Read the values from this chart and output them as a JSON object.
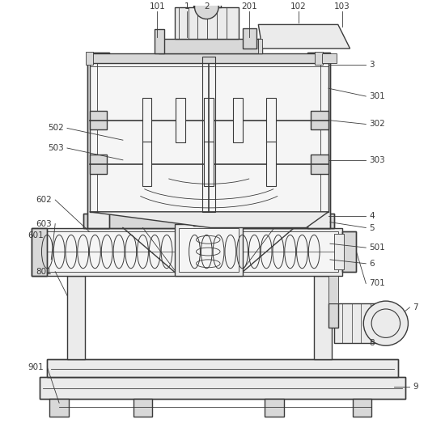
{
  "background_color": "#ffffff",
  "line_color": "#3a3a3a",
  "label_color": "#3a3a3a",
  "figsize": [
    5.5,
    5.34
  ],
  "dpi": 100,
  "label_fontsize": 7.5
}
